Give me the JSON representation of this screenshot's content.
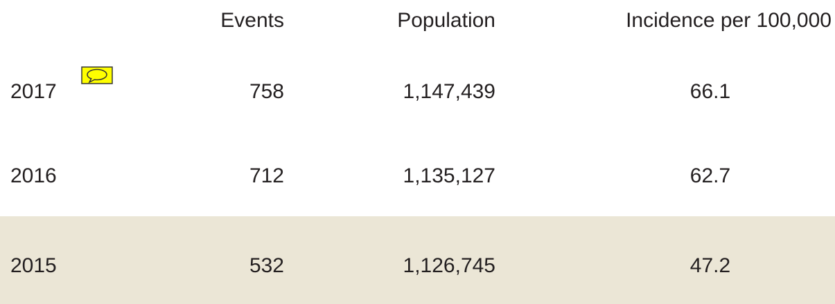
{
  "table": {
    "header": [
      "Events",
      "Population",
      "Incidence per 100,000"
    ],
    "rows": [
      [
        "2017",
        "758",
        "1,147,439",
        "66.1"
      ],
      [
        "2016",
        "712",
        "1,135,127",
        "62.7"
      ],
      [
        "2015",
        "532",
        "1,126,745",
        "47.2"
      ]
    ]
  }
}
